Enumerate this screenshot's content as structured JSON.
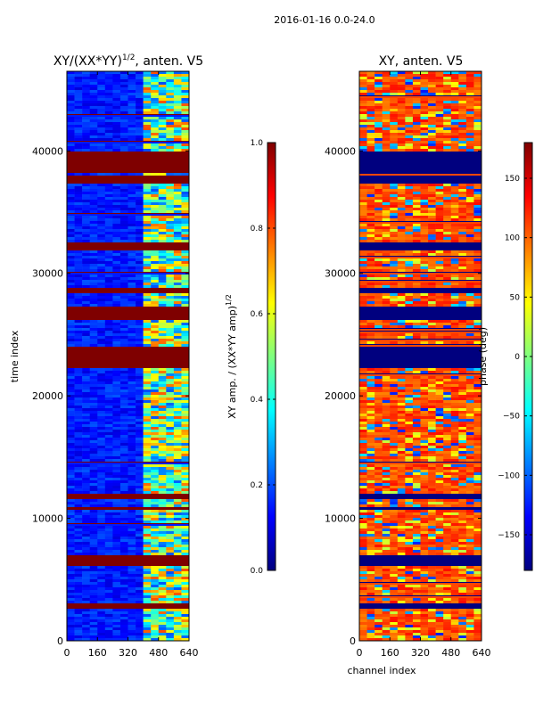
{
  "figure_title": "2016-01-16 0.0-24.0",
  "colormap": [
    "#00007f",
    "#0000ff",
    "#007fff",
    "#00ffff",
    "#7fff7f",
    "#ffff00",
    "#ff7f00",
    "#ff0000",
    "#7f0000"
  ],
  "chart_data": [
    {
      "type": "heatmap",
      "title_main": "XY/(XX*YY)",
      "title_sup": "1/2",
      "title_tail": ", anten. V5",
      "xlabel": "",
      "ylabel": "time index",
      "xlim": [
        0,
        640
      ],
      "ylim": [
        0,
        46500
      ],
      "xticks": [
        0,
        160,
        320,
        480,
        640
      ],
      "yticks": [
        0,
        10000,
        20000,
        30000,
        40000
      ],
      "colorbar": {
        "label_main": "XY amp. / (XX*YY amp)",
        "label_sup": "1/2",
        "range": [
          0.0,
          1.0
        ],
        "ticks": [
          0.0,
          0.2,
          0.4,
          0.6,
          0.8,
          1.0
        ],
        "tick_labels": [
          "0.0",
          "0.2",
          "0.4",
          "0.6",
          "0.8",
          "1.0"
        ]
      },
      "flagged_time_bands": [
        [
          2700,
          3200
        ],
        [
          6300,
          7200
        ],
        [
          10700,
          11000
        ],
        [
          11600,
          12200
        ],
        [
          22300,
          24200
        ],
        [
          26400,
          27400
        ],
        [
          28400,
          29000
        ],
        [
          32000,
          32600
        ],
        [
          37400,
          38000
        ],
        [
          38400,
          40100
        ]
      ],
      "bright_channel_range": [
        400,
        620
      ],
      "background_amplitude": 0.15
    },
    {
      "type": "heatmap",
      "title_main": "XY, anten. V5",
      "xlabel": "channel index",
      "ylabel": "",
      "xlim": [
        0,
        640
      ],
      "ylim": [
        0,
        46500
      ],
      "xticks": [
        0,
        160,
        320,
        480,
        640
      ],
      "yticks": [
        0,
        10000,
        20000,
        30000,
        40000
      ],
      "colorbar": {
        "label_main": "phase (deg)",
        "range": [
          -180,
          180
        ],
        "ticks": [
          -150,
          -100,
          -50,
          0,
          50,
          100,
          150
        ],
        "tick_labels": [
          "−150",
          "−100",
          "−50",
          "0",
          "50",
          "100",
          "150"
        ]
      },
      "flagged_time_bands": [
        [
          2700,
          3200
        ],
        [
          6300,
          7200
        ],
        [
          10700,
          11000
        ],
        [
          11600,
          12200
        ],
        [
          22300,
          24200
        ],
        [
          26400,
          27400
        ],
        [
          28400,
          29000
        ],
        [
          32000,
          32600
        ],
        [
          37400,
          38000
        ],
        [
          38400,
          40100
        ]
      ],
      "dominant_phase_deg": 110
    }
  ]
}
